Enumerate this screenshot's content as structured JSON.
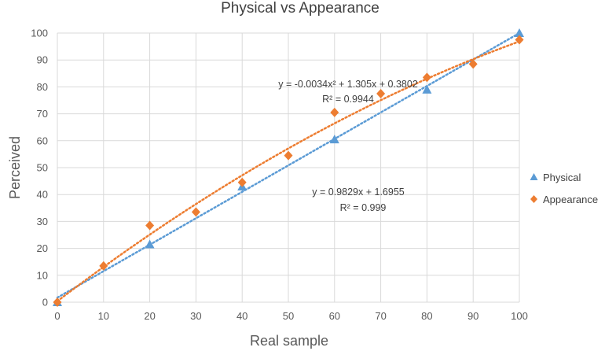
{
  "chart_data": {
    "type": "scatter",
    "title": "Physical vs Appearance",
    "xlabel": "Real sample",
    "ylabel": "Perceived",
    "xlim": [
      0,
      100
    ],
    "ylim": [
      0,
      100
    ],
    "xticks": [
      0,
      10,
      20,
      30,
      40,
      50,
      60,
      70,
      80,
      90,
      100
    ],
    "yticks": [
      0,
      10,
      20,
      30,
      40,
      50,
      60,
      70,
      80,
      90,
      100
    ],
    "grid": true,
    "legend_position": "right",
    "series": [
      {
        "name": "Physical",
        "marker": "triangle",
        "color": "#5b9bd5",
        "points": [
          [
            0,
            0
          ],
          [
            20,
            21.5
          ],
          [
            40,
            43
          ],
          [
            60,
            60.5
          ],
          [
            80,
            79
          ],
          [
            100,
            100
          ]
        ],
        "trendline": {
          "type": "linear",
          "coef": [
            1.6955,
            0.9829
          ],
          "equation": "y = 0.9829x + 1.6955",
          "r2": "R² = 0.999"
        }
      },
      {
        "name": "Appearance",
        "marker": "diamond",
        "color": "#ed7d31",
        "points": [
          [
            0,
            0
          ],
          [
            10,
            13.5
          ],
          [
            20,
            28.5
          ],
          [
            30,
            33.5
          ],
          [
            40,
            44.5
          ],
          [
            50,
            54.5
          ],
          [
            60,
            70.5
          ],
          [
            70,
            77.5
          ],
          [
            80,
            83.5
          ],
          [
            90,
            88.5
          ],
          [
            100,
            97.5
          ]
        ],
        "trendline": {
          "type": "polynomial",
          "coef": [
            0.3802,
            1.305,
            -0.0034
          ],
          "equation": "y = -0.0034x² + 1.305x + 0.3802",
          "r2": "R² = 0.9944"
        }
      }
    ]
  }
}
